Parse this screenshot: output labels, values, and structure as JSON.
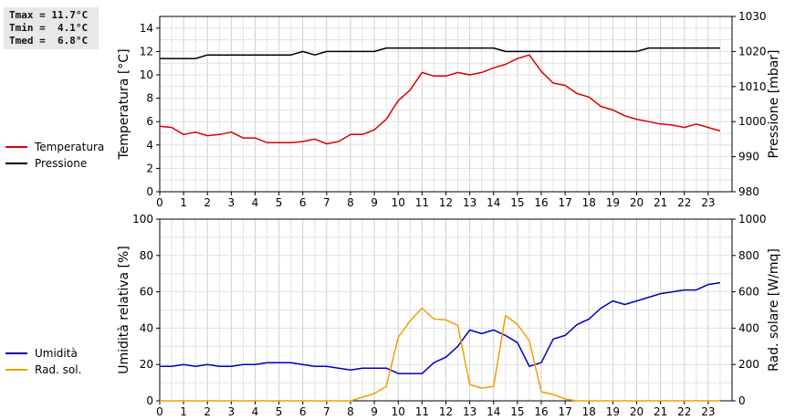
{
  "stats": {
    "tmax": "Tmax = 11.7°C",
    "tmin": "Tmin =  4.1°C",
    "tmed": "Tmed =  6.8°C"
  },
  "chart_data": [
    {
      "type": "line",
      "title": "",
      "xlabel": "",
      "x_ticks": [
        "0",
        "1",
        "2",
        "3",
        "4",
        "5",
        "6",
        "7",
        "8",
        "9",
        "10",
        "11",
        "12",
        "13",
        "14",
        "15",
        "16",
        "17",
        "18",
        "19",
        "20",
        "21",
        "22",
        "23"
      ],
      "xlim": [
        0,
        24
      ],
      "ylabel_left": "Temperatura [°C]",
      "ylim_left": [
        0,
        15
      ],
      "yticks_left": [
        0,
        2,
        4,
        6,
        8,
        10,
        12,
        14
      ],
      "ylabel_right": "Pressione [mbar]",
      "ylim_right": [
        980,
        1030
      ],
      "yticks_right": [
        980,
        990,
        1000,
        1010,
        1020,
        1030
      ],
      "grid": true,
      "legend_placement": "left",
      "series": [
        {
          "name": "Temperatura",
          "axis": "left",
          "color": "#dd0000",
          "x": [
            0,
            0.5,
            1,
            1.5,
            2,
            2.5,
            3,
            3.5,
            4,
            4.5,
            5,
            5.5,
            6,
            6.5,
            7,
            7.5,
            8,
            8.5,
            9,
            9.5,
            10,
            10.5,
            11,
            11.5,
            12,
            12.5,
            13,
            13.5,
            14,
            14.5,
            15,
            15.5,
            16,
            16.5,
            17,
            17.5,
            18,
            18.5,
            19,
            19.5,
            20,
            20.5,
            21,
            21.5,
            22,
            22.5,
            23,
            23.5
          ],
          "y": [
            5.6,
            5.5,
            4.9,
            5.1,
            4.8,
            4.9,
            5.1,
            4.6,
            4.6,
            4.2,
            4.2,
            4.2,
            4.3,
            4.5,
            4.1,
            4.3,
            4.9,
            4.9,
            5.3,
            6.2,
            7.8,
            8.7,
            10.2,
            9.9,
            9.9,
            10.2,
            10.0,
            10.2,
            10.6,
            10.9,
            11.4,
            11.7,
            10.3,
            9.3,
            9.1,
            8.4,
            8.1,
            7.3,
            7.0,
            6.5,
            6.2,
            6.0,
            5.8,
            5.7,
            5.5,
            5.8,
            5.5,
            5.2
          ]
        },
        {
          "name": "Pressione",
          "axis": "right",
          "color": "#000000",
          "x": [
            0,
            0.5,
            1,
            1.5,
            2,
            2.5,
            3,
            3.5,
            4,
            4.5,
            5,
            5.5,
            6,
            6.5,
            7,
            7.5,
            8,
            8.5,
            9,
            9.5,
            10,
            10.5,
            11,
            11.5,
            12,
            12.5,
            13,
            13.5,
            14,
            14.5,
            15,
            15.5,
            16,
            16.5,
            17,
            17.5,
            18,
            18.5,
            19,
            19.5,
            20,
            20.5,
            21,
            21.5,
            22,
            22.5,
            23,
            23.5
          ],
          "y": [
            1018,
            1018,
            1018,
            1018,
            1019,
            1019,
            1019,
            1019,
            1019,
            1019,
            1019,
            1019,
            1020,
            1019,
            1020,
            1020,
            1020,
            1020,
            1020,
            1021,
            1021,
            1021,
            1021,
            1021,
            1021,
            1021,
            1021,
            1021,
            1021,
            1020,
            1020,
            1020,
            1020,
            1020,
            1020,
            1020,
            1020,
            1020,
            1020,
            1020,
            1020,
            1021,
            1021,
            1021,
            1021,
            1021,
            1021,
            1021
          ]
        }
      ]
    },
    {
      "type": "line",
      "title": "",
      "xlabel": "",
      "x_ticks": [
        "0",
        "1",
        "2",
        "3",
        "4",
        "5",
        "6",
        "7",
        "8",
        "9",
        "10",
        "11",
        "12",
        "13",
        "14",
        "15",
        "16",
        "17",
        "18",
        "19",
        "20",
        "21",
        "22",
        "23"
      ],
      "xlim": [
        0,
        24
      ],
      "ylabel_left": "Umidità relativa [%]",
      "ylim_left": [
        0,
        100
      ],
      "yticks_left": [
        0,
        20,
        40,
        60,
        80,
        100
      ],
      "ylabel_right": "Rad. solare [W/mq]",
      "ylim_right": [
        0,
        1000
      ],
      "yticks_right": [
        0,
        200,
        400,
        600,
        800,
        1000
      ],
      "grid": true,
      "legend_placement": "left",
      "series": [
        {
          "name": "Umidità",
          "axis": "left",
          "color": "#0000bb",
          "x": [
            0,
            0.5,
            1,
            1.5,
            2,
            2.5,
            3,
            3.5,
            4,
            4.5,
            5,
            5.5,
            6,
            6.5,
            7,
            7.5,
            8,
            8.5,
            9,
            9.5,
            10,
            10.5,
            11,
            11.5,
            12,
            12.5,
            13,
            13.5,
            14,
            14.5,
            15,
            15.5,
            16,
            16.5,
            17,
            17.5,
            18,
            18.5,
            19,
            19.5,
            20,
            20.5,
            21,
            21.5,
            22,
            22.5,
            23,
            23.5
          ],
          "y": [
            19,
            19,
            20,
            19,
            20,
            19,
            19,
            20,
            20,
            21,
            21,
            21,
            20,
            19,
            19,
            18,
            17,
            18,
            18,
            18,
            15,
            15,
            15,
            21,
            24,
            30,
            39,
            37,
            39,
            36,
            32,
            19,
            21,
            34,
            36,
            42,
            45,
            51,
            55,
            53,
            55,
            57,
            59,
            60,
            61,
            61,
            64,
            65
          ]
        },
        {
          "name": "Rad. sol.",
          "axis": "right",
          "color": "#f0a000",
          "x": [
            0,
            0.5,
            1,
            1.5,
            2,
            2.5,
            3,
            3.5,
            4,
            4.5,
            5,
            5.5,
            6,
            6.5,
            7,
            7.5,
            8,
            8.5,
            9,
            9.5,
            10,
            10.5,
            11,
            11.5,
            12,
            12.5,
            13,
            13.5,
            14,
            14.5,
            15,
            15.5,
            16,
            16.5,
            17,
            17.5,
            18,
            18.5,
            19,
            19.5,
            20,
            20.5,
            21,
            21.5,
            22,
            22.5,
            23,
            23.5
          ],
          "y": [
            0,
            0,
            0,
            0,
            0,
            0,
            0,
            0,
            0,
            0,
            0,
            0,
            0,
            0,
            0,
            0,
            0,
            20,
            40,
            80,
            350,
            440,
            510,
            450,
            445,
            415,
            90,
            70,
            80,
            470,
            420,
            330,
            50,
            35,
            10,
            0,
            0,
            0,
            0,
            0,
            0,
            0,
            0,
            0,
            0,
            0,
            0,
            0
          ]
        }
      ]
    }
  ]
}
